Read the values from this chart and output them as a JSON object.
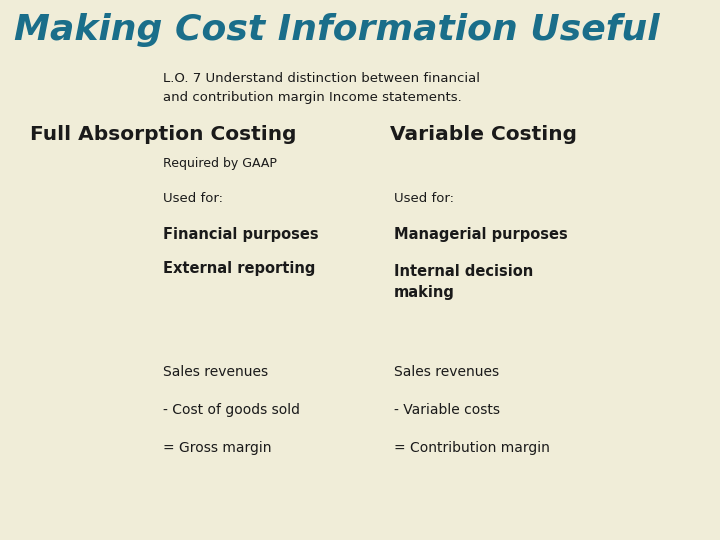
{
  "title": "Making Cost Information Useful",
  "title_color": "#1a6e8a",
  "title_bg": "#c8bfa8",
  "subtitle_line1": "L.O. 7 Understand distinction between financial",
  "subtitle_line2": "and contribution margin Income statements.",
  "subtitle_bg": "#ffffff",
  "subtitle_border": "#888888",
  "bg_color": "#f0edd8",
  "left_panel_color": "#7b7bb5",
  "teal_color": "#009999",
  "left_heading": "Full Absorption Costing",
  "right_heading": "Variable Costing",
  "heading_color": "#1a1a1a",
  "gaap_label": "Required by GAAP",
  "gaap_bg": "#ffffff",
  "gaap_border": "#555555",
  "used_for_label": "Used for:",
  "left_bold1": "Financial purposes",
  "left_bold2": "External reporting",
  "right_bold1": "Managerial purposes",
  "right_bold2_l1": "Internal decision",
  "right_bold2_l2": "making",
  "left_plain1": "Sales revenues",
  "left_plain2": "- Cost of goods sold",
  "left_plain3": "= Gross margin",
  "right_plain1": "Sales revenues",
  "right_plain2": "- Variable costs",
  "right_plain3": "= Contribution margin",
  "text_dark": "#1a1a1a"
}
